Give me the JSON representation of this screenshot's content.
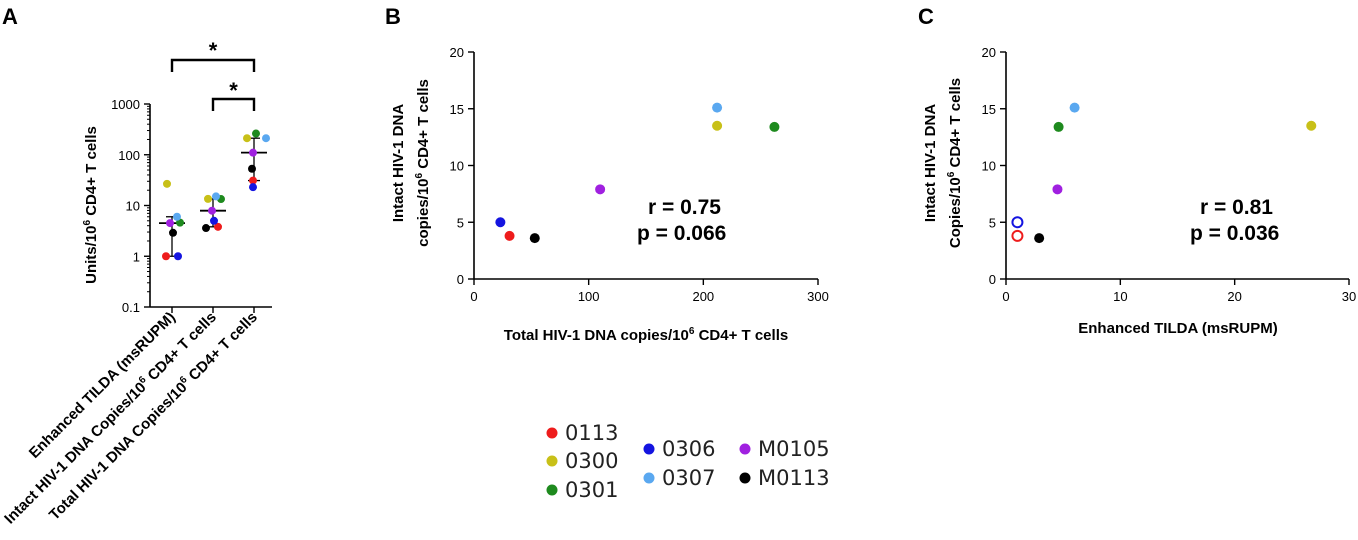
{
  "colors": {
    "0113": "#ee1c1c",
    "0300": "#c8c018",
    "0301": "#1e8a1e",
    "0306": "#1414e0",
    "0307": "#5aa8f0",
    "M0105": "#a020e0",
    "M0113": "#000000"
  },
  "legend": {
    "items": [
      {
        "id": "0113",
        "label": "0113"
      },
      {
        "id": "0300",
        "label": "0300"
      },
      {
        "id": "0301",
        "label": "0301"
      },
      {
        "id": "0306",
        "label": "0306"
      },
      {
        "id": "0307",
        "label": "0307"
      },
      {
        "id": "M0105",
        "label": "M0105"
      },
      {
        "id": "M0113",
        "label": "M0113"
      }
    ]
  },
  "chart_data": [
    {
      "panel": "A",
      "type": "scatter",
      "ylabel": "Units/10^6 CD4+ T cells",
      "yscale": "log",
      "ylim": [
        0.1,
        1000
      ],
      "yticks": [
        "0.1",
        "1",
        "10",
        "100",
        "1000"
      ],
      "categories": [
        "Enhanced TILDA (msRUPM)",
        "Intact HIV-1 DNA Copies/10^6 CD4+ T cells",
        "Total HIV-1 DNA Copies/10^6 CD4+ T cells"
      ],
      "series": [
        {
          "name": "0113",
          "values": [
            1.0,
            3.8,
            31
          ]
        },
        {
          "name": "0300",
          "values": [
            26.7,
            13.5,
            212
          ]
        },
        {
          "name": "0301",
          "values": [
            4.6,
            13.4,
            262
          ]
        },
        {
          "name": "0306",
          "values": [
            1.0,
            5.0,
            23
          ]
        },
        {
          "name": "0307",
          "values": [
            6.0,
            15.1,
            212
          ]
        },
        {
          "name": "M0105",
          "values": [
            4.5,
            7.9,
            110
          ]
        },
        {
          "name": "M0113",
          "values": [
            2.9,
            3.6,
            53
          ]
        }
      ],
      "medians": [
        4.5,
        7.9,
        110
      ],
      "significance": [
        {
          "from": 0,
          "to": 2,
          "label": "*"
        },
        {
          "from": 1,
          "to": 2,
          "label": "*"
        }
      ]
    },
    {
      "panel": "B",
      "type": "scatter",
      "xlabel": "Total HIV-1 DNA copies/10^6 CD4+ T cells",
      "ylabel_line1": "Intact HIV-1 DNA",
      "ylabel_line2": "copies/10^6 CD4+  T cells",
      "xlim": [
        0,
        300
      ],
      "ylim": [
        0,
        20
      ],
      "xticks": [
        "0",
        "100",
        "200",
        "300"
      ],
      "yticks": [
        "0",
        "5",
        "10",
        "15",
        "20"
      ],
      "r_text": "r = 0.75",
      "p_text": "p = 0.066",
      "points": [
        {
          "name": "0113",
          "x": 31,
          "y": 3.8
        },
        {
          "name": "0300",
          "x": 212,
          "y": 13.5
        },
        {
          "name": "0301",
          "x": 262,
          "y": 13.4
        },
        {
          "name": "0306",
          "x": 23,
          "y": 5.0
        },
        {
          "name": "0307",
          "x": 212,
          "y": 15.1
        },
        {
          "name": "M0105",
          "x": 110,
          "y": 7.9
        },
        {
          "name": "M0113",
          "x": 53,
          "y": 3.6
        }
      ]
    },
    {
      "panel": "C",
      "type": "scatter",
      "xlabel": "Enhanced TILDA (msRUPM)",
      "ylabel_line1": "Intact HIV-1 DNA",
      "ylabel_line2": "Copies/10^6 CD4+  T cells",
      "xlim": [
        0,
        30
      ],
      "ylim": [
        0,
        20
      ],
      "xticks": [
        "0",
        "10",
        "20",
        "30"
      ],
      "yticks": [
        "0",
        "5",
        "10",
        "15",
        "20"
      ],
      "r_text": "r = 0.81",
      "p_text": "p = 0.036",
      "points": [
        {
          "name": "0113",
          "x": 1.0,
          "y": 3.8,
          "open": true
        },
        {
          "name": "0300",
          "x": 26.7,
          "y": 13.5
        },
        {
          "name": "0301",
          "x": 4.6,
          "y": 13.4
        },
        {
          "name": "0306",
          "x": 1.0,
          "y": 5.0,
          "open": true
        },
        {
          "name": "0307",
          "x": 6.0,
          "y": 15.1
        },
        {
          "name": "M0105",
          "x": 4.5,
          "y": 7.9
        },
        {
          "name": "M0113",
          "x": 2.9,
          "y": 3.6
        }
      ]
    }
  ]
}
